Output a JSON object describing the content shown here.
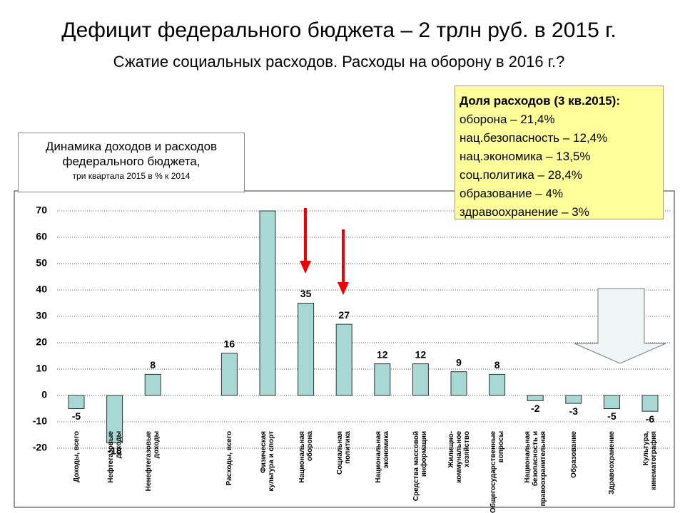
{
  "chart_data": {
    "type": "bar",
    "title": "Дефицит федерального бюджета – 2 трлн руб. в 2015 г.",
    "subtitle": "Сжатие социальных расходов. Расходы на оборону в 2016 г.?",
    "inset_title": [
      "Динамика доходов и расходов",
      "федерального бюджета,"
    ],
    "inset_subtitle": "три квартала 2015 в % к 2014",
    "note": {
      "title": "Доля расходов (3 кв.2015):",
      "lines": [
        "оборона – 21,4%",
        "нац.безопасность – 12,4%",
        "нац.экономика – 13,5%",
        "соц.политика – 28,4%",
        "образование – 4%",
        "здравоохранение – 3%"
      ]
    },
    "categories": [
      "Доходы, всего",
      "Нефтегазовые доходы",
      "Ненефтегазовые доходы",
      null,
      "Расходы, всего",
      "Физическая культура и спорт",
      "Национальная оборона",
      "Социальная политика",
      "Национальная экономика",
      "Средства массовой информации",
      "Жилищно-коммунальное хозяйство",
      "Общегосударственные вопросы",
      "Национальная безопасность и правоохранительная",
      "Образование",
      "Здравоохранение",
      "Культура, кинематография"
    ],
    "values": [
      -5,
      -18,
      8,
      null,
      16,
      70,
      35,
      27,
      12,
      12,
      9,
      8,
      -2,
      -3,
      -5,
      -6
    ],
    "value_labels": [
      "-5",
      "-18",
      "8",
      null,
      "16",
      null,
      "35",
      "27",
      "12",
      "12",
      "9",
      "8",
      "-2",
      "-3",
      "-5",
      "-6"
    ],
    "color": "#a8d8d4",
    "ylim": [
      -20,
      70
    ],
    "yticks": [
      -20,
      -10,
      0,
      10,
      20,
      30,
      40,
      50,
      60,
      70
    ],
    "grid": true
  }
}
